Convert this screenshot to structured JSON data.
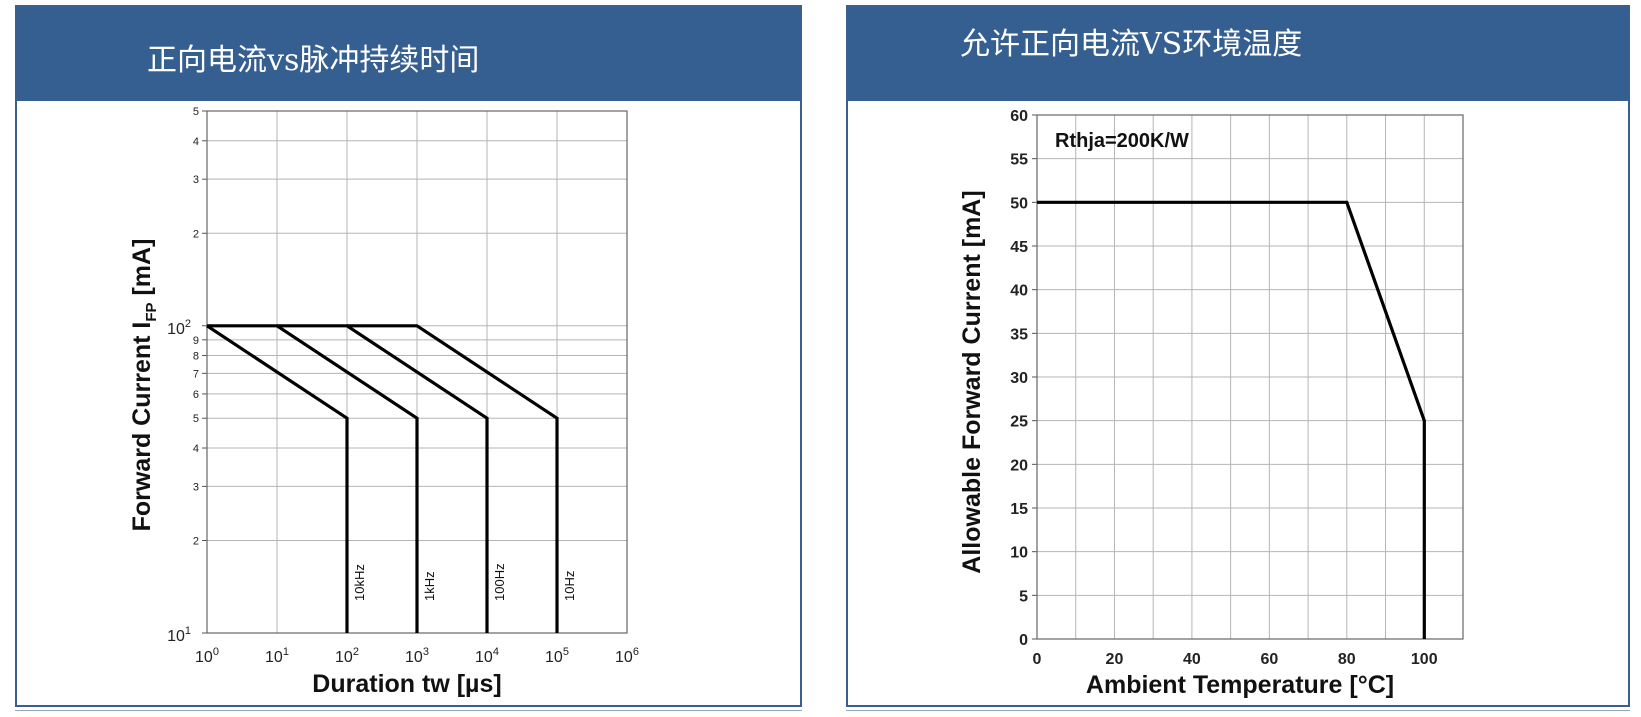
{
  "panels": {
    "left": {
      "title": "正向电流vs脉冲持续时间"
    },
    "right": {
      "title": "允许正向电流VS环境温度"
    }
  },
  "chart_data": [
    {
      "type": "line",
      "xscale": "log",
      "yscale": "log",
      "xlabel": "Duration tw [µs]",
      "ylabel_main": "Forward Current I",
      "ylabel_sub": "FP",
      "ylabel_unit": " [mA]",
      "xlim": [
        1,
        1000000
      ],
      "ylim": [
        10,
        500
      ],
      "x_ticks": [
        {
          "base": "10",
          "exp": "0"
        },
        {
          "base": "10",
          "exp": "1"
        },
        {
          "base": "10",
          "exp": "2"
        },
        {
          "base": "10",
          "exp": "3"
        },
        {
          "base": "10",
          "exp": "4"
        },
        {
          "base": "10",
          "exp": "5"
        },
        {
          "base": "10",
          "exp": "6"
        }
      ],
      "y_major_ticks": [
        {
          "value": 10,
          "base": "10",
          "exp": "1"
        },
        {
          "value": 100,
          "base": "10",
          "exp": "2"
        }
      ],
      "y_minor_ticks": [
        {
          "value": 20,
          "label": "2"
        },
        {
          "value": 30,
          "label": "3"
        },
        {
          "value": 40,
          "label": "4"
        },
        {
          "value": 50,
          "label": "5"
        },
        {
          "value": 60,
          "label": "6"
        },
        {
          "value": 70,
          "label": "7"
        },
        {
          "value": 80,
          "label": "8"
        },
        {
          "value": 90,
          "label": "9"
        },
        {
          "value": 200,
          "label": "2"
        },
        {
          "value": 300,
          "label": "3"
        },
        {
          "value": 400,
          "label": "4"
        },
        {
          "value": 500,
          "label": "5"
        }
      ],
      "grid": true,
      "series": [
        {
          "name": "10kHz",
          "points": [
            [
              1,
              100
            ],
            [
              100,
              50
            ],
            [
              100,
              10
            ]
          ]
        },
        {
          "name": "1kHz",
          "points": [
            [
              1,
              100
            ],
            [
              10,
              100
            ],
            [
              1000,
              50
            ],
            [
              1000,
              10
            ]
          ]
        },
        {
          "name": "100Hz",
          "points": [
            [
              10,
              100
            ],
            [
              100,
              100
            ],
            [
              10000,
              50
            ],
            [
              10000,
              10
            ]
          ]
        },
        {
          "name": "10Hz",
          "points": [
            [
              100,
              100
            ],
            [
              1000,
              100
            ],
            [
              100000,
              50
            ],
            [
              100000,
              10
            ]
          ]
        }
      ]
    },
    {
      "type": "line",
      "xlabel": "Ambient Temperature [°C]",
      "ylabel": "Allowable Forward Current [mA]",
      "annotation": "Rthja=200K/W",
      "xlim": [
        0,
        110
      ],
      "ylim": [
        0,
        60
      ],
      "x_ticks": [
        0,
        20,
        40,
        60,
        80,
        100
      ],
      "y_ticks": [
        0,
        5,
        10,
        15,
        20,
        25,
        30,
        35,
        40,
        45,
        50,
        55,
        60
      ],
      "grid": true,
      "series": [
        {
          "points": [
            [
              0,
              50
            ],
            [
              80,
              50
            ],
            [
              100,
              25
            ],
            [
              100,
              0
            ]
          ]
        }
      ]
    }
  ]
}
